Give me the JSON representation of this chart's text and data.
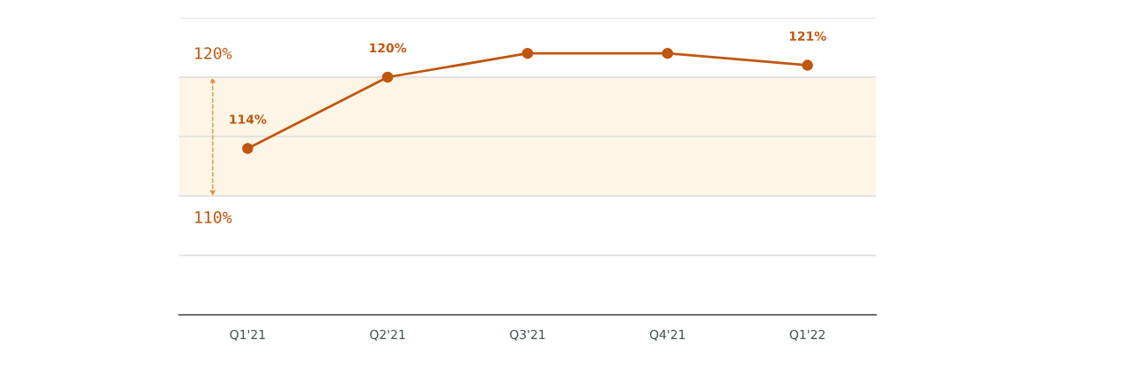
{
  "chart_data": {
    "type": "line",
    "categories": [
      "Q1'21",
      "Q2'21",
      "Q3'21",
      "Q4'21",
      "Q1'22"
    ],
    "series": [
      {
        "color": "#c0560f",
        "values": [
          114,
          120,
          122,
          122,
          121
        ],
        "value_labels": [
          "114%",
          "120%",
          null,
          null,
          "121%"
        ]
      }
    ],
    "ylim": [
      100,
      125
    ],
    "yticks": [
      {
        "value": 100,
        "label": null
      },
      {
        "value": 105,
        "label": null
      },
      {
        "value": 110,
        "label": null
      },
      {
        "value": 115,
        "label": null
      },
      {
        "value": 120,
        "label": null
      },
      {
        "value": 125,
        "label": null
      }
    ],
    "tick_labels": "x",
    "grid": "y",
    "marker": "circle",
    "line_style": "solid",
    "bands": [
      {
        "axis": "y",
        "from": 110,
        "to": 120,
        "color": "#fdf6e6"
      }
    ],
    "annotations": [
      {
        "text": "120%",
        "y": 120
      },
      {
        "text": "110%",
        "y": 110
      }
    ]
  }
}
